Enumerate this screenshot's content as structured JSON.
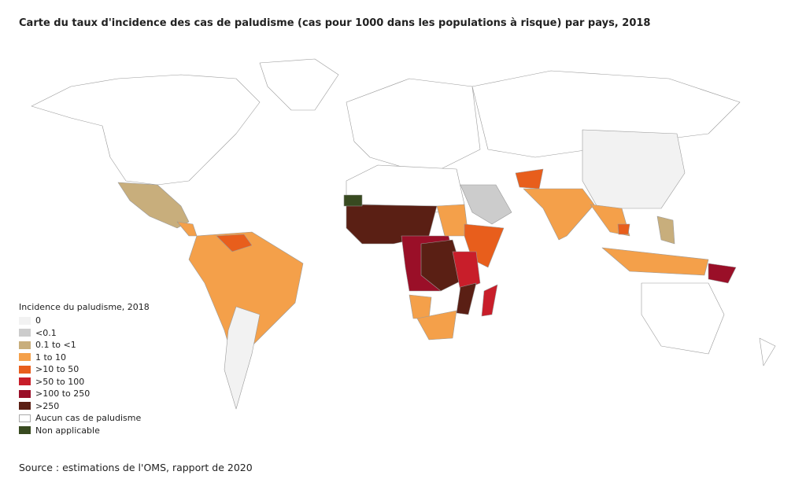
{
  "title": "Carte du taux d'incidence des cas de paludisme (cas pour 1000 dans les populations à risque) par pays, 2018",
  "legend": {
    "title": "Incidence du paludisme, 2018",
    "items": [
      {
        "label": "0",
        "color": "#f2f2f2"
      },
      {
        "label": "<0.1",
        "color": "#cccccc"
      },
      {
        "label": "0.1 to <1",
        "color": "#c8ae7c"
      },
      {
        "label": "1 to 10",
        "color": "#f4a04a"
      },
      {
        "label": ">10 to 50",
        "color": "#e85e1c"
      },
      {
        "label": ">50 to 100",
        "color": "#c81e2a"
      },
      {
        "label": ">100 to 250",
        "color": "#9a0f28"
      },
      {
        "label": ">250",
        "color": "#5a1f14"
      },
      {
        "label": "Aucun cas de paludisme",
        "color": "#ffffff"
      },
      {
        "label": "Non applicable",
        "color": "#384a20"
      }
    ]
  },
  "source": "Source : estimations de l'OMS, rapport de 2020"
}
